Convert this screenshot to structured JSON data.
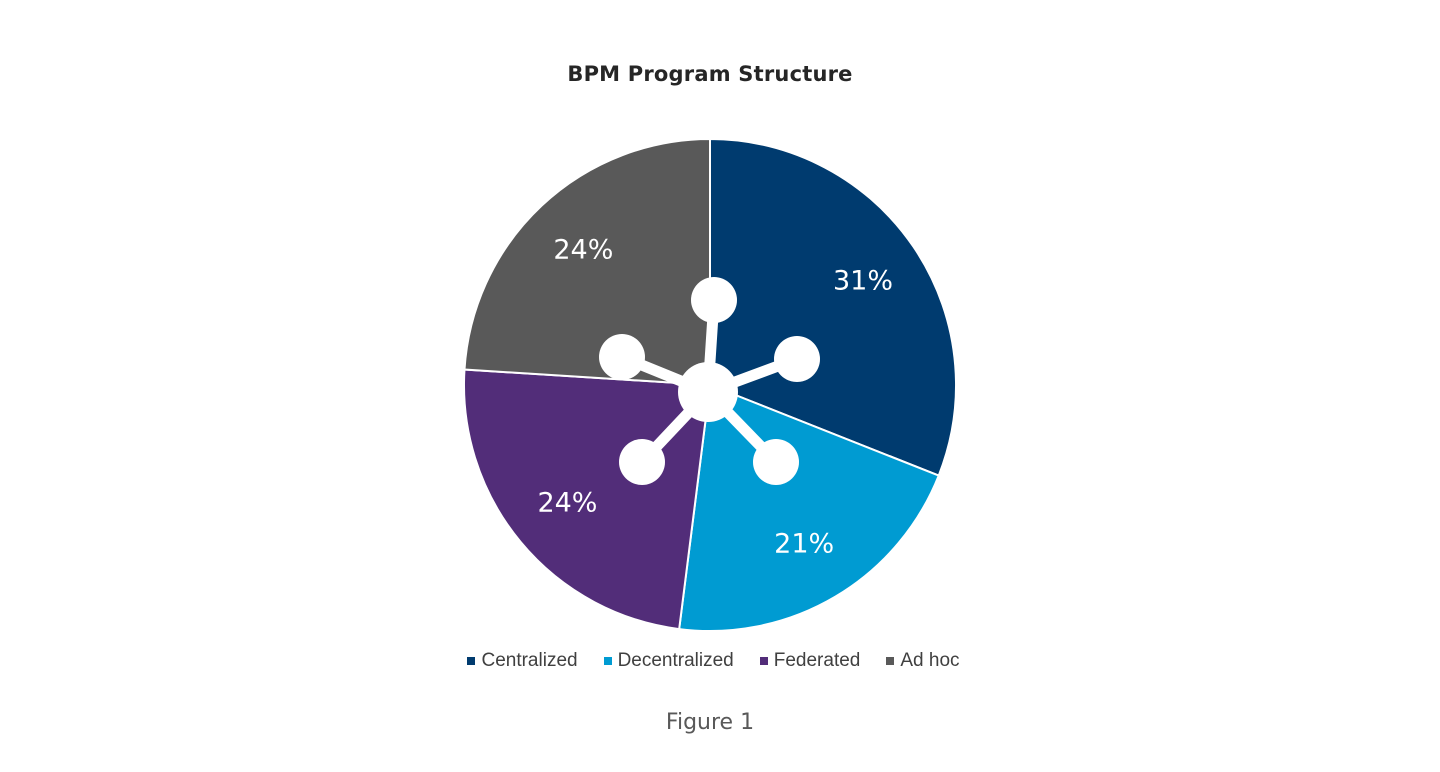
{
  "chart_data": {
    "type": "pie",
    "title": "BPM Program Structure",
    "categories": [
      "Centralized",
      "Decentralized",
      "Federated",
      "Ad hoc"
    ],
    "values": [
      31,
      21,
      24,
      24
    ],
    "value_labels": [
      "31%",
      "21%",
      "24%",
      "24%"
    ],
    "colors": [
      "#003B6F",
      "#009BD2",
      "#522D79",
      "#595959"
    ],
    "legend_position": "bottom",
    "center_icon": "network-hub-icon"
  },
  "caption": "Figure 1"
}
